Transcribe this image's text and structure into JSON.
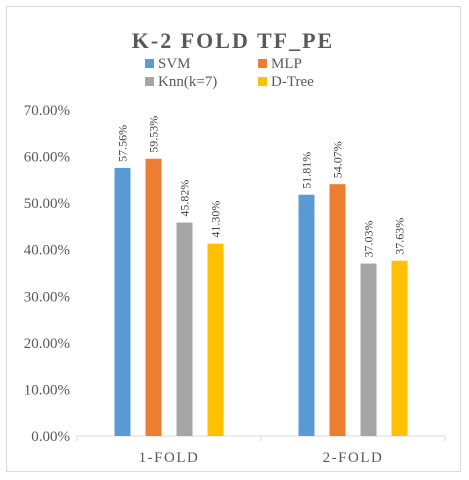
{
  "chart_data": {
    "type": "bar",
    "title": "K-2 FOLD TF_PE",
    "categories": [
      "1-FOLD",
      "2-FOLD"
    ],
    "series": [
      {
        "name": "SVM",
        "color": "#5b9bd5",
        "values": [
          57.56,
          51.81
        ],
        "labels": [
          "57.56%",
          "51.81%"
        ]
      },
      {
        "name": "MLP",
        "color": "#ed7d31",
        "values": [
          59.53,
          54.07
        ],
        "labels": [
          "59.53%",
          "54.07%"
        ]
      },
      {
        "name": "Knn(k=7)",
        "color": "#a5a5a5",
        "values": [
          45.82,
          37.03
        ],
        "labels": [
          "45.82%",
          "37.03%"
        ]
      },
      {
        "name": "D-Tree",
        "color": "#ffc000",
        "values": [
          41.3,
          37.63
        ],
        "labels": [
          "41.30%",
          "37.63%"
        ]
      }
    ],
    "yticks": [
      "0.00%",
      "10.00%",
      "20.00%",
      "30.00%",
      "40.00%",
      "50.00%",
      "60.00%",
      "70.00%"
    ],
    "ylim": [
      0,
      70
    ],
    "legend_position": "top",
    "grid": false
  }
}
